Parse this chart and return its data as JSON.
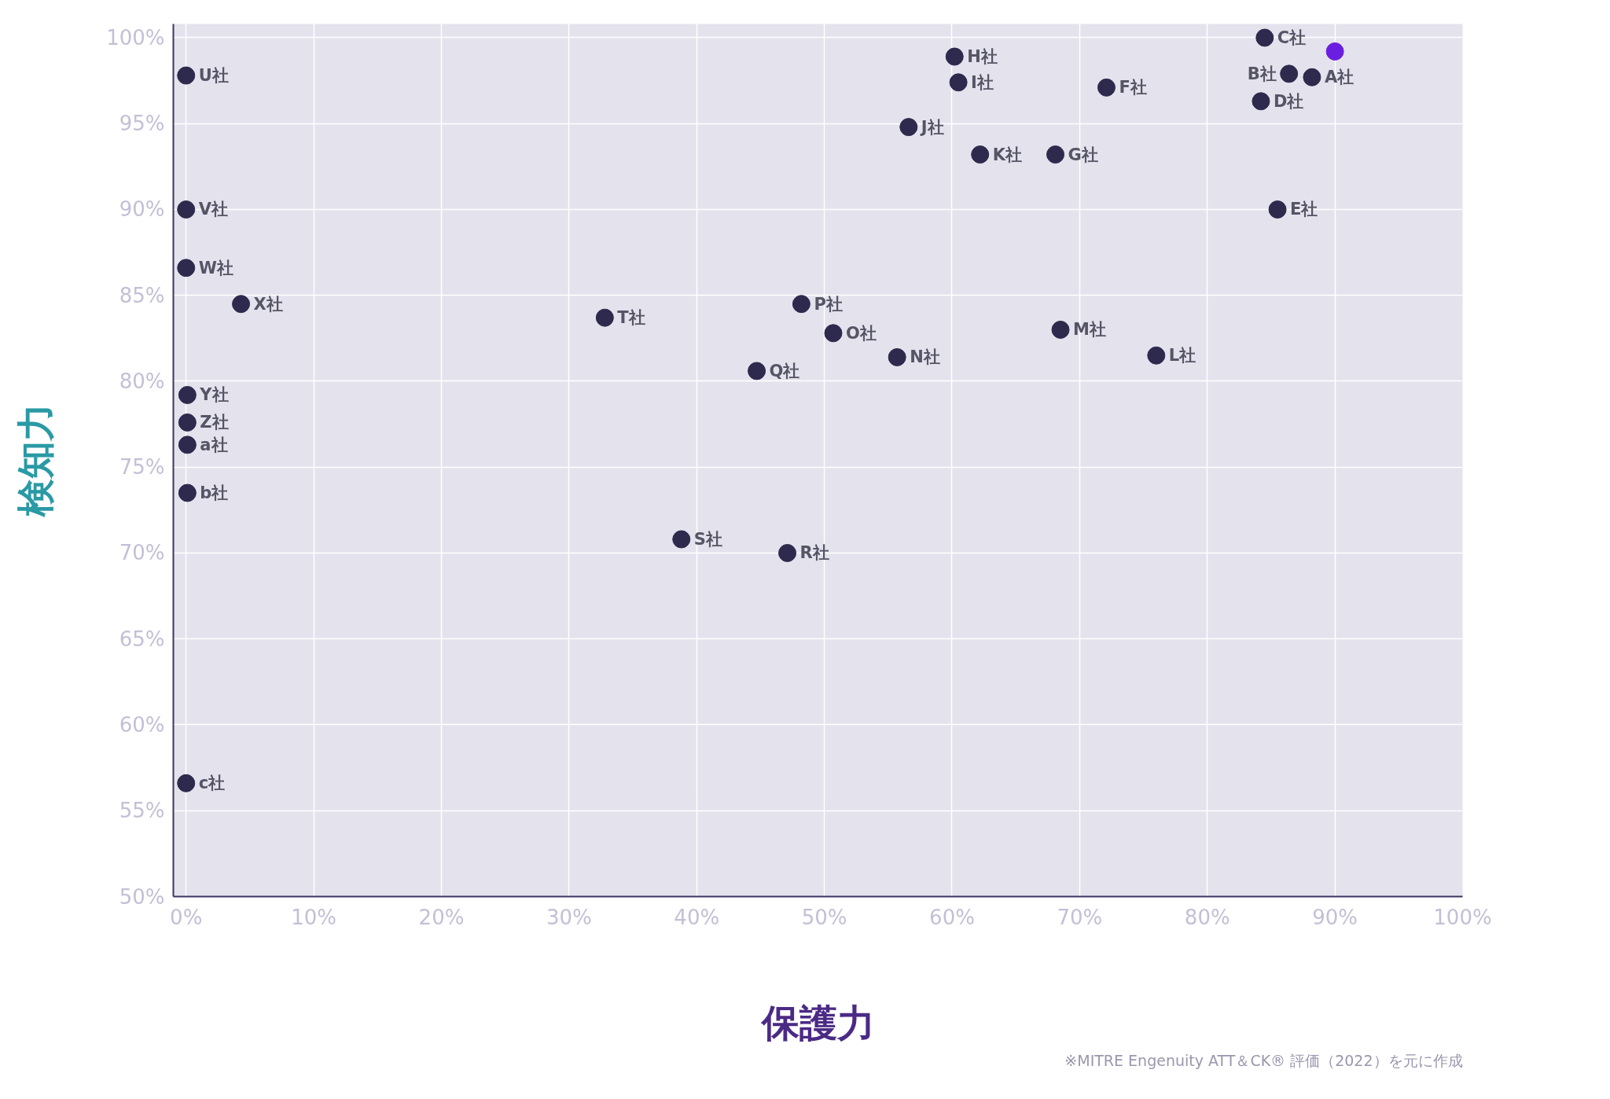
{
  "chart_data": {
    "type": "scatter",
    "xlabel": "保護力",
    "ylabel": "検知力",
    "xlim": [
      -1,
      100
    ],
    "ylim": [
      50,
      100.8
    ],
    "xticks": [
      {
        "value": 0,
        "label": "0%"
      },
      {
        "value": 10,
        "label": "10%"
      },
      {
        "value": 20,
        "label": "20%"
      },
      {
        "value": 30,
        "label": "30%"
      },
      {
        "value": 40,
        "label": "40%"
      },
      {
        "value": 50,
        "label": "50%"
      },
      {
        "value": 60,
        "label": "60%"
      },
      {
        "value": 70,
        "label": "70%"
      },
      {
        "value": 80,
        "label": "80%"
      },
      {
        "value": 90,
        "label": "90%"
      },
      {
        "value": 100,
        "label": "100%"
      }
    ],
    "yticks": [
      {
        "value": 50,
        "label": "50%"
      },
      {
        "value": 55,
        "label": "55%"
      },
      {
        "value": 60,
        "label": "60%"
      },
      {
        "value": 65,
        "label": "65%"
      },
      {
        "value": 70,
        "label": "70%"
      },
      {
        "value": 75,
        "label": "75%"
      },
      {
        "value": 80,
        "label": "80%"
      },
      {
        "value": 85,
        "label": "85%"
      },
      {
        "value": 90,
        "label": "90%"
      },
      {
        "value": 95,
        "label": "95%"
      },
      {
        "value": 100,
        "label": "100%"
      }
    ],
    "grid": true,
    "marker": "circle",
    "series": [
      {
        "x": [
          84.5,
          60.2,
          0,
          86.4,
          88.2,
          60.5,
          72.1,
          84.2,
          56.6,
          62.2,
          68.1,
          0,
          85.5,
          0,
          4.3,
          32.8,
          48.2,
          50.7,
          68.5,
          55.7,
          76.0,
          44.7,
          0.1,
          0.1,
          0.1,
          0.1,
          38.8,
          47.1,
          0,
          90.0
        ],
        "values": [
          100.0,
          98.9,
          97.8,
          97.9,
          97.7,
          97.4,
          97.1,
          96.3,
          94.8,
          93.2,
          93.2,
          90.0,
          90.0,
          86.6,
          84.5,
          83.7,
          84.5,
          82.8,
          83.0,
          81.4,
          81.5,
          80.6,
          79.2,
          77.6,
          76.3,
          73.5,
          70.8,
          70.0,
          56.6,
          99.2
        ],
        "colors": [
          "#2e2a4e",
          "#2e2a4e",
          "#2e2a4e",
          "#2e2a4e",
          "#2e2a4e",
          "#2e2a4e",
          "#2e2a4e",
          "#2e2a4e",
          "#2e2a4e",
          "#2e2a4e",
          "#2e2a4e",
          "#2e2a4e",
          "#2e2a4e",
          "#2e2a4e",
          "#2e2a4e",
          "#2e2a4e",
          "#2e2a4e",
          "#2e2a4e",
          "#2e2a4e",
          "#2e2a4e",
          "#2e2a4e",
          "#2e2a4e",
          "#2e2a4e",
          "#2e2a4e",
          "#2e2a4e",
          "#2e2a4e",
          "#2e2a4e",
          "#2e2a4e",
          "#2e2a4e",
          "#6a1fe0"
        ]
      }
    ],
    "annotations": [
      {
        "text": "C社",
        "x": 84.5,
        "y": 100.0
      },
      {
        "text": "H社",
        "x": 60.2,
        "y": 98.9
      },
      {
        "text": "U社",
        "x": 0,
        "y": 97.8
      },
      {
        "text": "B社",
        "x": 86.4,
        "y": 97.9
      },
      {
        "text": "A社",
        "x": 88.2,
        "y": 97.7
      },
      {
        "text": "I社",
        "x": 60.5,
        "y": 97.4
      },
      {
        "text": "F社",
        "x": 72.1,
        "y": 97.1
      },
      {
        "text": "D社",
        "x": 84.2,
        "y": 96.3
      },
      {
        "text": "J社",
        "x": 56.6,
        "y": 94.8
      },
      {
        "text": "K社",
        "x": 62.2,
        "y": 93.2
      },
      {
        "text": "G社",
        "x": 68.1,
        "y": 93.2
      },
      {
        "text": "V社",
        "x": 0,
        "y": 90.0
      },
      {
        "text": "E社",
        "x": 85.5,
        "y": 90.0
      },
      {
        "text": "W社",
        "x": 0,
        "y": 86.6
      },
      {
        "text": "X社",
        "x": 4.3,
        "y": 84.5
      },
      {
        "text": "T社",
        "x": 32.8,
        "y": 83.7
      },
      {
        "text": "P社",
        "x": 48.2,
        "y": 84.5
      },
      {
        "text": "O社",
        "x": 50.7,
        "y": 82.8
      },
      {
        "text": "M社",
        "x": 68.5,
        "y": 83.0
      },
      {
        "text": "N社",
        "x": 55.7,
        "y": 81.4
      },
      {
        "text": "L社",
        "x": 76.0,
        "y": 81.5
      },
      {
        "text": "Q社",
        "x": 44.7,
        "y": 80.6
      },
      {
        "text": "Y社",
        "x": 0.1,
        "y": 79.2
      },
      {
        "text": "Z社",
        "x": 0.1,
        "y": 77.6
      },
      {
        "text": "a社",
        "x": 0.1,
        "y": 76.3
      },
      {
        "text": "b社",
        "x": 0.1,
        "y": 73.5
      },
      {
        "text": "S社",
        "x": 38.8,
        "y": 70.8
      },
      {
        "text": "R社",
        "x": 47.1,
        "y": 70.0
      },
      {
        "text": "c社",
        "x": 0,
        "y": 56.6
      },
      "※MITRE Engenuity ATT＆CK® 評価（2022）を元に作成"
    ]
  }
}
